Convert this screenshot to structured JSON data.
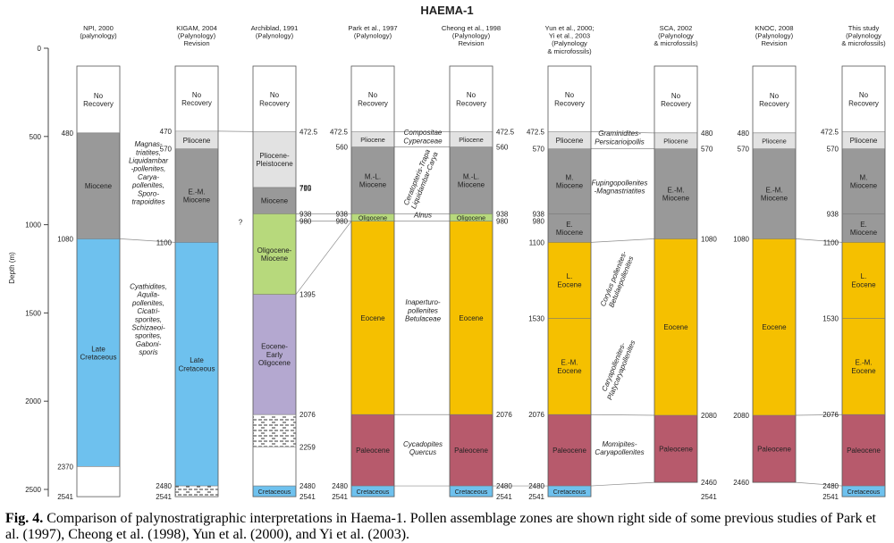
{
  "chart_data": {
    "type": "stratigraphic-columns",
    "title": "HAEMA-1",
    "ylabel": "Depth (m)",
    "ylim": [
      0,
      2541
    ],
    "yticks": [
      0,
      500,
      1000,
      1500,
      2000,
      2500
    ],
    "colors": {
      "norec": "#ffffff",
      "pliocene": "#e2e2e2",
      "miocene": "#999999",
      "oligocene": "#b7d97c",
      "olimio": "#b7d97c",
      "eocene": "#f5c000",
      "paleocene": "#b75a6c",
      "cretaceous": "#6ec1ee",
      "lavender": "#b4a8d0",
      "blank": "#ffffff",
      "hatch": "#ffffff"
    },
    "columns": [
      {
        "name": "NPI, 2000\n(palynology)",
        "units": [
          {
            "top": 0,
            "bottom": 480,
            "label": "No\nRecovery",
            "kind": "norec"
          },
          {
            "top": 480,
            "bottom": 1080,
            "label": "Miocene",
            "kind": "miocene"
          },
          {
            "top": 1080,
            "bottom": 2370,
            "label": "Late\nCretaceous",
            "kind": "cretaceous"
          },
          {
            "top": 2370,
            "bottom": 2541,
            "label": "",
            "kind": "blank"
          }
        ],
        "left_depths": [
          480,
          1080,
          2370,
          2541
        ],
        "right_depths": [],
        "zones": [
          {
            "text": "Magnas-\ntriatites,\nLiquidambar\n-pollenites,\nCarya-\npollenites,\nSporo-\ntrapoidites",
            "depth": 720,
            "rotated": false
          },
          {
            "text": "Cyathidites,\nAquila-\npollenites,\nCicatri-\nsporites,\nSchizaeoi-\nsporites,\nGaboni-\nsporis",
            "depth": 1550,
            "rotated": false
          }
        ]
      },
      {
        "name": "KIGAM, 2004\n(Palynology)\nRevision",
        "units": [
          {
            "top": 0,
            "bottom": 470,
            "label": "No\nRecovery",
            "kind": "norec"
          },
          {
            "top": 470,
            "bottom": 570,
            "label": "Pliocene",
            "kind": "pliocene"
          },
          {
            "top": 570,
            "bottom": 1100,
            "label": "E.-M.\nMiocene",
            "kind": "miocene"
          },
          {
            "top": 1100,
            "bottom": 2480,
            "label": "Late\nCretaceous",
            "kind": "cretaceous"
          },
          {
            "top": 2480,
            "bottom": 2541,
            "label": "",
            "kind": "hatch"
          }
        ],
        "left_depths": [
          470,
          570,
          1100,
          2480,
          2541
        ],
        "right_depths": [],
        "zones": []
      },
      {
        "name": "Archiblad, 1991\n(Palynology)",
        "units": [
          {
            "top": 0,
            "bottom": 472.5,
            "label": "No\nRecovery",
            "kind": "norec"
          },
          {
            "top": 472.5,
            "bottom": 789,
            "label": "Pliocene-\nPleistocene",
            "kind": "pliocene"
          },
          {
            "top": 789,
            "bottom": 938,
            "label": "Miocene",
            "kind": "miocene"
          },
          {
            "top": 938,
            "bottom": 1395,
            "label": "Oligocene-\nMiocene",
            "kind": "olimio"
          },
          {
            "top": 1395,
            "bottom": 2076,
            "label": "Eocene-\nEarly\nOligocene",
            "kind": "lavender"
          },
          {
            "top": 2076,
            "bottom": 2259,
            "label": "",
            "kind": "hatch"
          },
          {
            "top": 2259,
            "bottom": 2480,
            "label": "",
            "kind": "blank"
          },
          {
            "top": 2480,
            "bottom": 2541,
            "label": "Cretaceous",
            "kind": "cretaceous"
          }
        ],
        "left_depths": [],
        "right_depths": [
          472.5,
          789,
          795,
          938,
          980,
          1395,
          2076,
          2259,
          2480,
          2541
        ],
        "question_mark": "?",
        "zones": []
      },
      {
        "name": "Park et al., 1997\n(Palynology)",
        "units": [
          {
            "top": 0,
            "bottom": 472.5,
            "label": "No\nRecovery",
            "kind": "norec"
          },
          {
            "top": 472.5,
            "bottom": 560,
            "label": "Pliocene",
            "kind": "pliocene"
          },
          {
            "top": 560,
            "bottom": 938,
            "label": "M.-L.\nMiocene",
            "kind": "miocene"
          },
          {
            "top": 938,
            "bottom": 980,
            "label": "Oligocene",
            "kind": "oligocene"
          },
          {
            "top": 980,
            "bottom": 2076,
            "label": "Eocene",
            "kind": "eocene"
          },
          {
            "top": 2076,
            "bottom": 2480,
            "label": "Paleocene",
            "kind": "paleocene"
          },
          {
            "top": 2480,
            "bottom": 2541,
            "label": "Cretaceous",
            "kind": "cretaceous"
          }
        ],
        "left_depths": [
          472.5,
          560,
          938,
          980,
          2480,
          2541
        ],
        "right_depths": [],
        "zones": [
          {
            "text": "Compositae\nCyperaceae",
            "depth": 515,
            "rotated": false
          },
          {
            "text": "Ceratopteris-Trapa\nLiquidambar-Carya",
            "depth": 745,
            "rotated": true
          },
          {
            "text": "Alnus",
            "depth": 959,
            "rotated": false
          },
          {
            "text": "Inaperturo-\npollenites\nBetulaceae",
            "depth": 1500,
            "rotated": false
          },
          {
            "text": "Cycadopites\nQuercus",
            "depth": 2280,
            "rotated": false
          }
        ]
      },
      {
        "name": "Cheong et al., 1998\n(Palynology)\nRevision",
        "units": [
          {
            "top": 0,
            "bottom": 472.5,
            "label": "No\nRecovery",
            "kind": "norec"
          },
          {
            "top": 472.5,
            "bottom": 560,
            "label": "Pliocene",
            "kind": "pliocene"
          },
          {
            "top": 560,
            "bottom": 938,
            "label": "M.-L.\nMiocene",
            "kind": "miocene"
          },
          {
            "top": 938,
            "bottom": 980,
            "label": "Oligocene",
            "kind": "oligocene"
          },
          {
            "top": 980,
            "bottom": 2076,
            "label": "Eocene",
            "kind": "eocene"
          },
          {
            "top": 2076,
            "bottom": 2480,
            "label": "Paleocene",
            "kind": "paleocene"
          },
          {
            "top": 2480,
            "bottom": 2541,
            "label": "Cretaceous",
            "kind": "cretaceous"
          }
        ],
        "left_depths": [],
        "right_depths": [
          472.5,
          560,
          938,
          980,
          2076,
          2480,
          2541
        ],
        "zones": []
      },
      {
        "name": "Yun et al., 2000;\nYi et al., 2003\n(Palynology\n& microfossils)",
        "units": [
          {
            "top": 0,
            "bottom": 472.5,
            "label": "No\nRecovery",
            "kind": "norec"
          },
          {
            "top": 472.5,
            "bottom": 570,
            "label": "Pliocene",
            "kind": "pliocene"
          },
          {
            "top": 570,
            "bottom": 938,
            "label": "M.\nMiocene",
            "kind": "miocene"
          },
          {
            "top": 938,
            "bottom": 1100,
            "label": "E.\nMiocene",
            "kind": "miocene"
          },
          {
            "top": 1100,
            "bottom": 1530,
            "label": "L.\nEocene",
            "kind": "eocene"
          },
          {
            "top": 1530,
            "bottom": 2076,
            "label": "E.-M.\nEocene",
            "kind": "eocene"
          },
          {
            "top": 2076,
            "bottom": 2480,
            "label": "Paleocene",
            "kind": "paleocene"
          },
          {
            "top": 2480,
            "bottom": 2541,
            "label": "Cretaceous",
            "kind": "cretaceous"
          }
        ],
        "left_depths": [
          472.5,
          570,
          938,
          980,
          1100,
          1530,
          2076,
          2480,
          2541
        ],
        "right_depths": [],
        "zones": [
          {
            "text": "Graminidites-\nPersicarioipollis",
            "depth": 520,
            "rotated": false
          },
          {
            "text": "Fupingopollenites\n-Magnastriatites",
            "depth": 800,
            "rotated": false
          },
          {
            "text": "Corylus pollenites-\nBetulaepollenites",
            "depth": 1320,
            "rotated": true
          },
          {
            "text": "Caryapollenites-\nPlatycaryapollenites",
            "depth": 1820,
            "rotated": true
          },
          {
            "text": "Momipites-\nCaryapollenites",
            "depth": 2280,
            "rotated": false
          }
        ]
      },
      {
        "name": "SCA, 2002\n(Palynology\n& microfossils)",
        "units": [
          {
            "top": 0,
            "bottom": 480,
            "label": "No\nRecovery",
            "kind": "norec"
          },
          {
            "top": 480,
            "bottom": 570,
            "label": "Pliocene",
            "kind": "pliocene"
          },
          {
            "top": 570,
            "bottom": 1080,
            "label": "E.-M.\nMiocene",
            "kind": "miocene"
          },
          {
            "top": 1080,
            "bottom": 2080,
            "label": "Eocene",
            "kind": "eocene"
          },
          {
            "top": 2080,
            "bottom": 2460,
            "label": "Paleocene",
            "kind": "paleocene"
          }
        ],
        "left_depths": [],
        "right_depths": [
          480,
          570,
          1080,
          2080,
          2460,
          2541
        ],
        "zones": []
      },
      {
        "name": "KNOC, 2008\n(Palynology)\nRevision",
        "units": [
          {
            "top": 0,
            "bottom": 480,
            "label": "No\nRecovery",
            "kind": "norec"
          },
          {
            "top": 480,
            "bottom": 570,
            "label": "Pliocene",
            "kind": "pliocene"
          },
          {
            "top": 570,
            "bottom": 1080,
            "label": "E.-M.\nMiocene",
            "kind": "miocene"
          },
          {
            "top": 1080,
            "bottom": 2080,
            "label": "Eocene",
            "kind": "eocene"
          },
          {
            "top": 2080,
            "bottom": 2460,
            "label": "Paleocene",
            "kind": "paleocene"
          }
        ],
        "left_depths": [
          480,
          570,
          1080,
          2080,
          2460
        ],
        "right_depths": [],
        "zones": []
      },
      {
        "name": "This study\n(Palynology\n& microfossils)",
        "units": [
          {
            "top": 0,
            "bottom": 472.5,
            "label": "No\nRecovery",
            "kind": "norec"
          },
          {
            "top": 472.5,
            "bottom": 570,
            "label": "Pliocene",
            "kind": "pliocene"
          },
          {
            "top": 570,
            "bottom": 938,
            "label": "M.\nMiocene",
            "kind": "miocene"
          },
          {
            "top": 938,
            "bottom": 1100,
            "label": "E.\nMiocene",
            "kind": "miocene"
          },
          {
            "top": 1100,
            "bottom": 1530,
            "label": "L.\nEocene",
            "kind": "eocene"
          },
          {
            "top": 1530,
            "bottom": 2076,
            "label": "E.-M.\nEocene",
            "kind": "eocene"
          },
          {
            "top": 2076,
            "bottom": 2480,
            "label": "Paleocene",
            "kind": "paleocene"
          },
          {
            "top": 2480,
            "bottom": 2541,
            "label": "Cretaceous",
            "kind": "cretaceous"
          }
        ],
        "left_depths": [
          472.5,
          570,
          938,
          1100,
          1530,
          2076,
          2480,
          2541
        ],
        "right_depths": [],
        "zones": []
      }
    ],
    "correlations": [
      [
        [
          0,
          1080
        ],
        [
          1,
          1100
        ]
      ],
      [
        [
          2,
          938
        ],
        [
          3,
          938
        ]
      ],
      [
        [
          2,
          980
        ],
        [
          3,
          980
        ]
      ],
      [
        [
          2,
          1395
        ],
        [
          3,
          980
        ]
      ],
      [
        [
          1,
          470
        ],
        [
          2,
          472.5
        ]
      ],
      [
        [
          3,
          472.5
        ],
        [
          4,
          472.5
        ]
      ],
      [
        [
          3,
          560
        ],
        [
          4,
          560
        ]
      ],
      [
        [
          3,
          938
        ],
        [
          4,
          938
        ]
      ],
      [
        [
          3,
          980
        ],
        [
          4,
          980
        ]
      ],
      [
        [
          3,
          2076
        ],
        [
          4,
          2076
        ]
      ],
      [
        [
          3,
          2480
        ],
        [
          4,
          2480
        ]
      ],
      [
        [
          4,
          2480
        ],
        [
          5,
          2480
        ]
      ],
      [
        [
          5,
          472.5
        ],
        [
          6,
          480
        ]
      ],
      [
        [
          5,
          570
        ],
        [
          6,
          570
        ]
      ],
      [
        [
          5,
          1100
        ],
        [
          6,
          1080
        ]
      ],
      [
        [
          5,
          2076
        ],
        [
          6,
          2080
        ]
      ],
      [
        [
          5,
          2480
        ],
        [
          6,
          2460
        ]
      ],
      [
        [
          7,
          1080
        ],
        [
          8,
          1100
        ]
      ],
      [
        [
          7,
          2460
        ],
        [
          8,
          2480
        ]
      ],
      [
        [
          7,
          2080
        ],
        [
          8,
          2076
        ]
      ]
    ]
  },
  "caption": {
    "label": "Fig. 4.",
    "text": "Comparison of palynostratigraphic interpretations in Haema-1. Pollen assemblage zones are shown right side of some previous studies of Park et al. (1997), Cheong et al. (1998), Yun et al. (2000), and Yi et al. (2003)."
  }
}
